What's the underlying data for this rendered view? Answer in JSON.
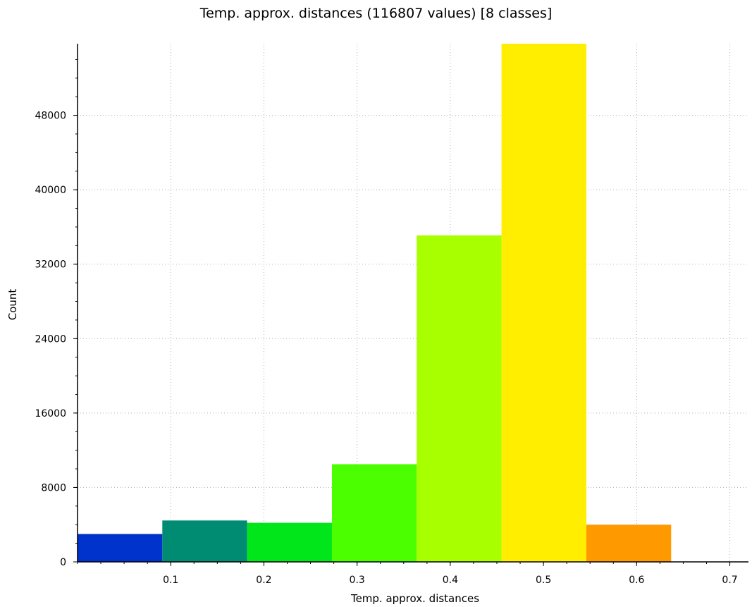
{
  "chart_data": {
    "type": "bar",
    "title": "Temp. approx. distances (116807 values)  [8 classes]",
    "xlabel": "Temp. approx. distances",
    "ylabel": "Count",
    "xlim": [
      0.0,
      0.72
    ],
    "ylim": [
      0,
      55700
    ],
    "xticks": [
      0.1,
      0.2,
      0.3,
      0.4,
      0.5,
      0.6,
      0.7
    ],
    "xtick_labels": [
      "0.1",
      "0.2",
      "0.3",
      "0.4",
      "0.5",
      "0.6",
      "0.7"
    ],
    "yticks": [
      0,
      8000,
      16000,
      24000,
      32000,
      40000,
      48000
    ],
    "ytick_labels": [
      "0",
      "8000",
      "16000",
      "24000",
      "32000",
      "40000",
      "48000"
    ],
    "grid": true,
    "bins": [
      {
        "start": 0.0,
        "end": 0.091,
        "count": 3000,
        "color": "#0033cc"
      },
      {
        "start": 0.091,
        "end": 0.182,
        "count": 4450,
        "color": "#008b73"
      },
      {
        "start": 0.182,
        "end": 0.273,
        "count": 4200,
        "color": "#00e61a"
      },
      {
        "start": 0.273,
        "end": 0.364,
        "count": 10500,
        "color": "#4cff00"
      },
      {
        "start": 0.364,
        "end": 0.455,
        "count": 35100,
        "color": "#a8ff00"
      },
      {
        "start": 0.455,
        "end": 0.546,
        "count": 55700,
        "color": "#ffee00"
      },
      {
        "start": 0.546,
        "end": 0.637,
        "count": 4000,
        "color": "#ff9900"
      },
      {
        "start": 0.637,
        "end": 0.728,
        "count": 0,
        "color": "#ff3300"
      }
    ]
  }
}
